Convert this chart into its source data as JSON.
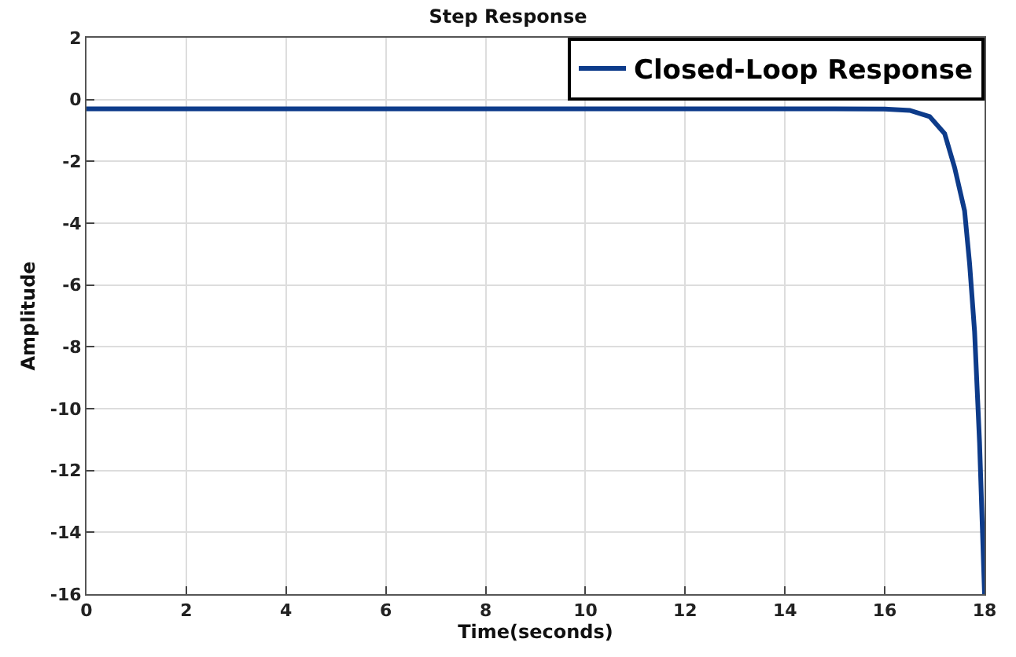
{
  "chart_data": {
    "type": "line",
    "title": "Step Response",
    "xlabel": "Time(seconds)",
    "ylabel": "Amplitude",
    "series": [
      {
        "name": "Closed-Loop Response",
        "color": "#0d3b8a",
        "x": [
          0,
          15,
          16,
          16.5,
          16.9,
          17.2,
          17.4,
          17.6,
          17.7,
          17.8,
          17.9,
          18
        ],
        "values": [
          -0.3,
          -0.3,
          -0.31,
          -0.35,
          -0.55,
          -1.1,
          -2.2,
          -3.6,
          -5.3,
          -7.5,
          -11.1,
          -16
        ]
      }
    ],
    "xlim": [
      0,
      18
    ],
    "xticks": [
      0,
      2,
      4,
      6,
      8,
      10,
      12,
      14,
      16,
      18
    ],
    "ylim": [
      -16,
      2
    ],
    "yticks": [
      -16,
      -14,
      -12,
      -10,
      -8,
      -6,
      -4,
      -2,
      0,
      2
    ],
    "grid": true,
    "legend": "top right",
    "marker": "none",
    "line_style": "solid"
  }
}
